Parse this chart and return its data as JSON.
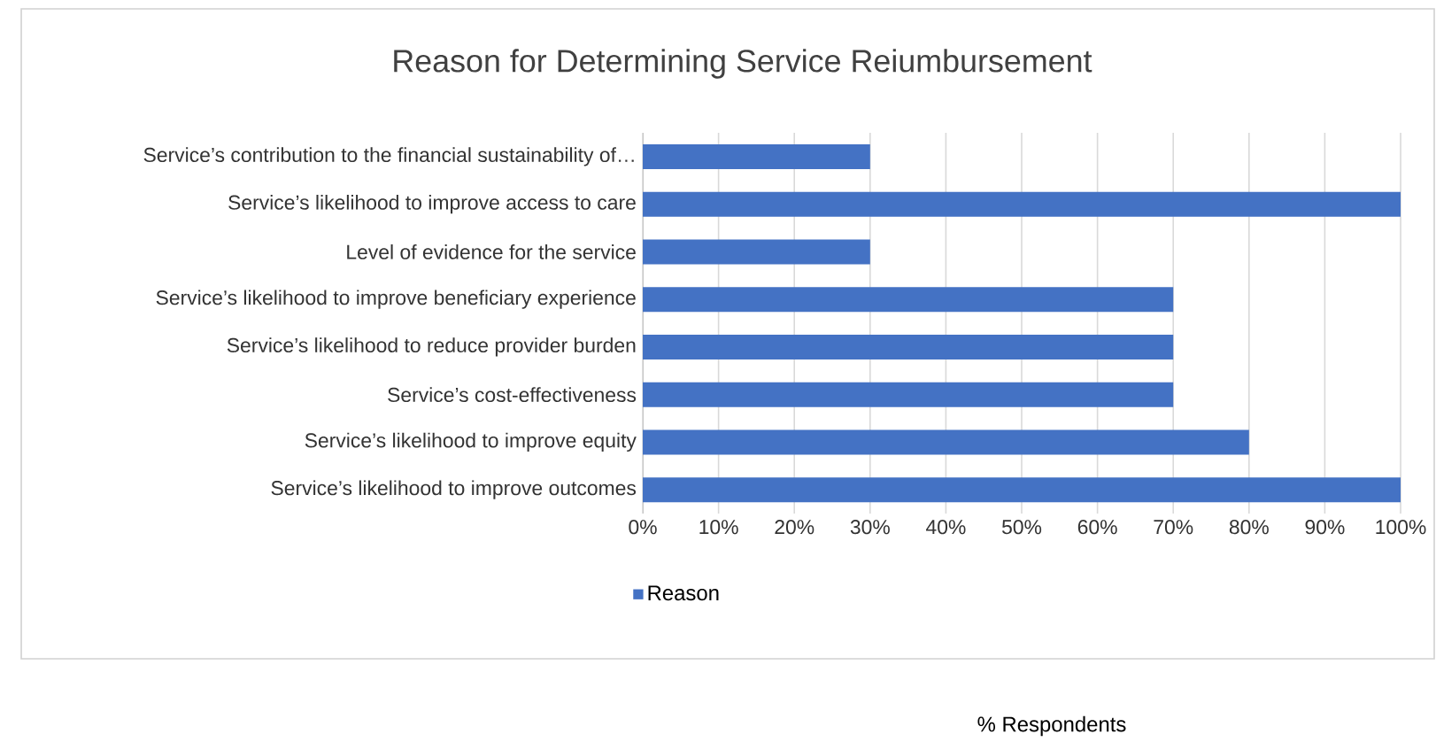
{
  "chart_data": {
    "type": "bar",
    "orientation": "horizontal",
    "title": "Reason for Determining Service Reiumbursement",
    "annotations": [
      "% Respondents"
    ],
    "categories": [
      "Service’s contribution to the financial sustainability of…",
      "Service’s likelihood to improve access to care",
      "Level of evidence for the service",
      "Service’s likelihood to improve beneficiary experience",
      "Service’s likelihood to reduce provider burden",
      "Service’s cost-effectiveness",
      "Service’s likelihood to improve equity",
      "Service’s likelihood to improve outcomes"
    ],
    "series": [
      {
        "name": "Reason",
        "color": "#4472c4",
        "values": [
          30,
          100,
          30,
          70,
          70,
          70,
          80,
          100
        ]
      }
    ],
    "xlim": [
      0,
      100
    ],
    "xticks": [
      {
        "value": 0,
        "label": "0%"
      },
      {
        "value": 10,
        "label": "10%"
      },
      {
        "value": 20,
        "label": "20%"
      },
      {
        "value": 30,
        "label": "30%"
      },
      {
        "value": 40,
        "label": "40%"
      },
      {
        "value": 50,
        "label": "50%"
      },
      {
        "value": 60,
        "label": "60%"
      },
      {
        "value": 70,
        "label": "70%"
      },
      {
        "value": 80,
        "label": "80%"
      },
      {
        "value": 90,
        "label": "90%"
      },
      {
        "value": 100,
        "label": "100%"
      }
    ],
    "grid": "x",
    "legend": "bottom left"
  }
}
